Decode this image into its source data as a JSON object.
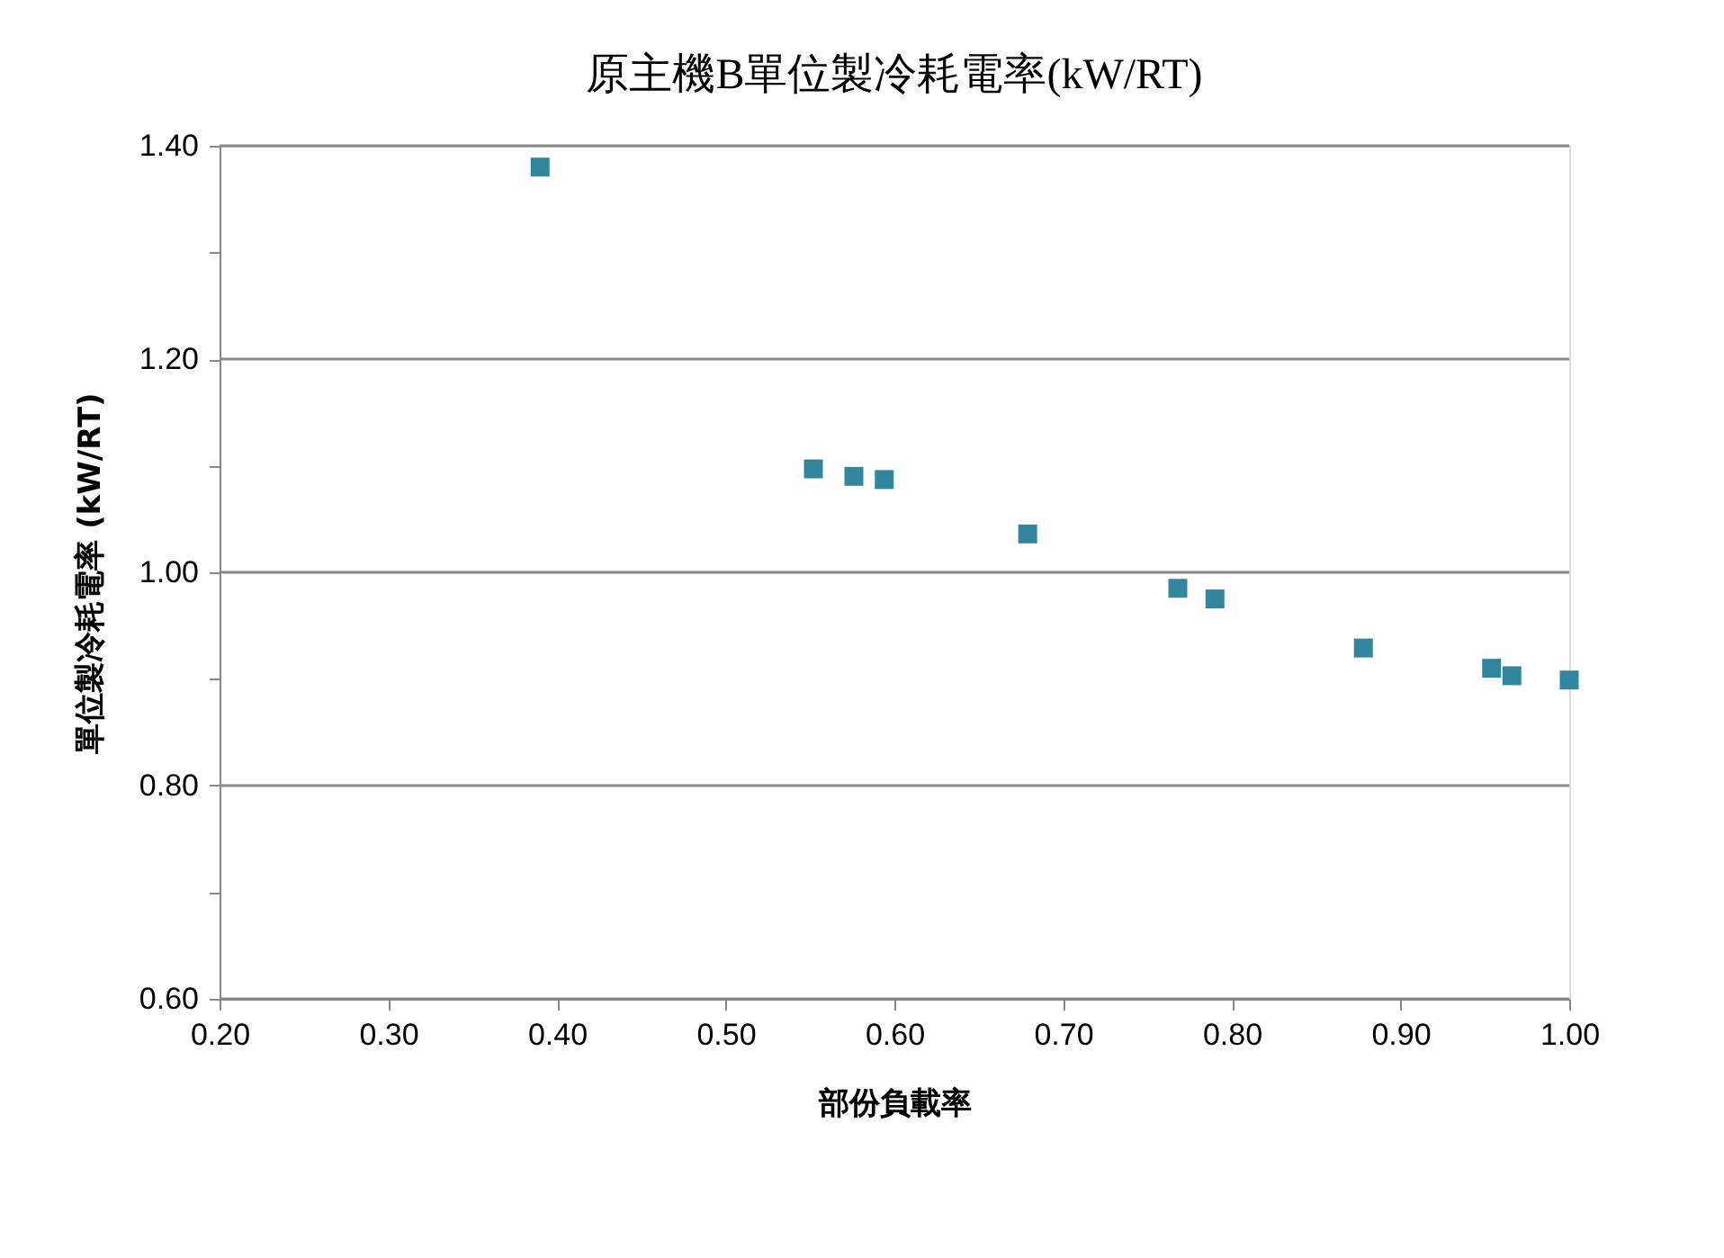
{
  "chart_data": {
    "type": "scatter",
    "title": "原主機B單位製冷耗電率(kW/RT)",
    "xlabel": "部份負載率",
    "ylabel": "單位製冷耗電率 (kW/RT)",
    "x": [
      0.39,
      0.552,
      0.576,
      0.594,
      0.679,
      0.768,
      0.79,
      0.878,
      0.954,
      0.966,
      1.0
    ],
    "series": [
      {
        "color": "#31859c",
        "values": [
          1.38,
          1.097,
          1.09,
          1.087,
          1.036,
          0.985,
          0.975,
          0.929,
          0.91,
          0.903,
          0.899
        ]
      }
    ],
    "xlim": [
      0.2,
      1.0
    ],
    "xticks": [
      {
        "value": 0.2,
        "label": "0.20"
      },
      {
        "value": 0.3,
        "label": "0.30"
      },
      {
        "value": 0.4,
        "label": "0.40"
      },
      {
        "value": 0.5,
        "label": "0.50"
      },
      {
        "value": 0.6,
        "label": "0.60"
      },
      {
        "value": 0.7,
        "label": "0.70"
      },
      {
        "value": 0.8,
        "label": "0.80"
      },
      {
        "value": 0.9,
        "label": "0.90"
      },
      {
        "value": 1.0,
        "label": "1.00"
      }
    ],
    "ylim": [
      0.6,
      1.4
    ],
    "yticks": [
      {
        "value": 0.6,
        "label": "0.60"
      },
      {
        "value": 0.7,
        "label": null
      },
      {
        "value": 0.8,
        "label": "0.80"
      },
      {
        "value": 0.9,
        "label": null
      },
      {
        "value": 1.0,
        "label": "1.00"
      },
      {
        "value": 1.1,
        "label": null
      },
      {
        "value": 1.2,
        "label": "1.20"
      },
      {
        "value": 1.3,
        "label": null
      },
      {
        "value": 1.4,
        "label": "1.40"
      }
    ],
    "grid": "y",
    "marker": "square"
  }
}
